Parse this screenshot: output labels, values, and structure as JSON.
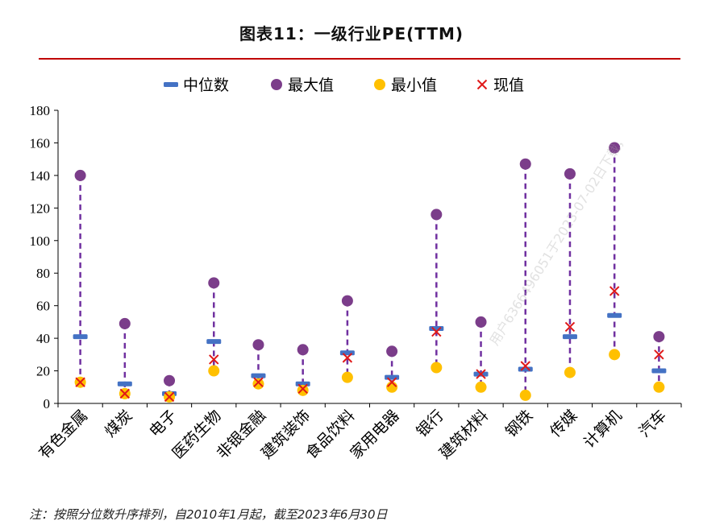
{
  "header": {
    "title": "图表11：一级行业PE(TTM)"
  },
  "note": "注：按照分位数升序排列，自2010年1月起，截至2023年6月30日",
  "watermark": "用户6366496051于2023-07-02日下载，",
  "colors": {
    "median": "#4472c4",
    "max": "#7b3d8a",
    "min": "#ffc000",
    "current": "#e01818",
    "rule": "#c00000",
    "range": "#7030a0"
  },
  "chart_data": {
    "type": "scatter",
    "title": "图表11：一级行业PE(TTM)",
    "categories": [
      "有色金属",
      "煤炭",
      "电子",
      "医药生物",
      "非银金融",
      "建筑装饰",
      "食品饮料",
      "家用电器",
      "银行",
      "建筑材料",
      "钢铁",
      "传媒",
      "计算机",
      "汽车"
    ],
    "ylim": [
      0,
      180
    ],
    "yticks": [
      0,
      20,
      40,
      60,
      80,
      100,
      120,
      140,
      160,
      180
    ],
    "legend_position": "top",
    "series": [
      {
        "name": "中位数",
        "marker": "dash",
        "values": [
          41,
          12,
          6,
          38,
          17,
          12,
          31,
          16,
          46,
          18,
          21,
          41,
          54,
          20
        ]
      },
      {
        "name": "最大值",
        "marker": "circle",
        "values": [
          140,
          49,
          14,
          74,
          36,
          33,
          63,
          32,
          116,
          50,
          147,
          141,
          157,
          41
        ]
      },
      {
        "name": "最小值",
        "marker": "circle",
        "values": [
          13,
          6,
          4,
          20,
          12,
          8,
          16,
          10,
          22,
          10,
          5,
          19,
          30,
          10
        ]
      },
      {
        "name": "现值",
        "marker": "x",
        "values": [
          13,
          6,
          4,
          27,
          13,
          9,
          28,
          13,
          44,
          18,
          23,
          47,
          69,
          30
        ]
      }
    ]
  }
}
